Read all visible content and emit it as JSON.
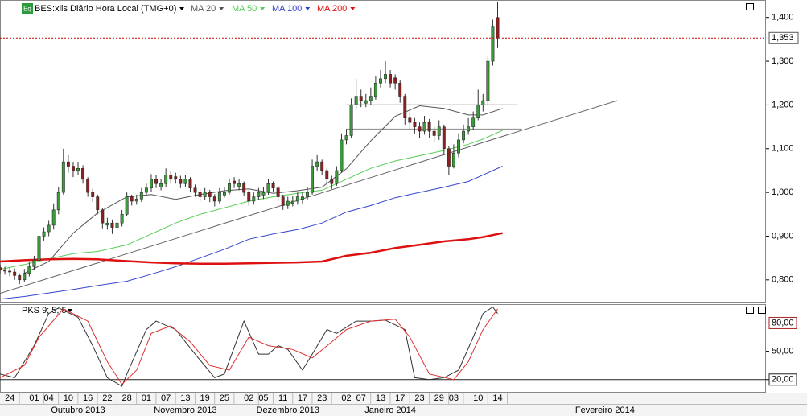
{
  "chart_data": [
    {
      "type": "candlestick",
      "symbol_icon": "Eq",
      "title": "BES:xlis Diário Hora Local (TMG+0)",
      "xlim": [
        -2,
        155
      ],
      "ylim": [
        0.75,
        1.44
      ],
      "yticks": [
        {
          "value": 1.4,
          "label": "1,400"
        },
        {
          "value": 1.3,
          "label": "1,300"
        },
        {
          "value": 1.2,
          "label": "1,200"
        },
        {
          "value": 1.1,
          "label": "1,100"
        },
        {
          "value": 1.0,
          "label": "1,000"
        },
        {
          "value": 0.9,
          "label": "0,900"
        },
        {
          "value": 0.8,
          "label": "0,800"
        }
      ],
      "xticks": [
        {
          "value": 0,
          "label": "24"
        },
        {
          "value": 5,
          "label": "01"
        },
        {
          "value": 8,
          "label": "04"
        },
        {
          "value": 12,
          "label": "10"
        },
        {
          "value": 16,
          "label": "16"
        },
        {
          "value": 20,
          "label": "22"
        },
        {
          "value": 24,
          "label": "28"
        },
        {
          "value": 28,
          "label": "01"
        },
        {
          "value": 32,
          "label": "07"
        },
        {
          "value": 36,
          "label": "13"
        },
        {
          "value": 40,
          "label": "19"
        },
        {
          "value": 44,
          "label": "25"
        },
        {
          "value": 49,
          "label": "02"
        },
        {
          "value": 52,
          "label": "05"
        },
        {
          "value": 56,
          "label": "11"
        },
        {
          "value": 60,
          "label": "17"
        },
        {
          "value": 64,
          "label": "23"
        },
        {
          "value": 69,
          "label": "02"
        },
        {
          "value": 72,
          "label": "07"
        },
        {
          "value": 76,
          "label": "13"
        },
        {
          "value": 80,
          "label": "17"
        },
        {
          "value": 84,
          "label": "23"
        },
        {
          "value": 88,
          "label": "29"
        },
        {
          "value": 91,
          "label": "03"
        },
        {
          "value": 96,
          "label": "10"
        },
        {
          "value": 100,
          "label": "14"
        }
      ],
      "month_ticks": [
        {
          "value": 14,
          "label": "Outubro 2013"
        },
        {
          "value": 36,
          "label": "Novembro 2013"
        },
        {
          "value": 57,
          "label": "Dezembro 2013"
        },
        {
          "value": 78,
          "label": "Janeiro 2014"
        },
        {
          "value": 122,
          "label": "Fevereiro 2014"
        }
      ],
      "up_color": "#3c9a3c",
      "down_color": "#8b2020",
      "candles": {
        "x": [
          -2,
          -1,
          0,
          1,
          2,
          3,
          4,
          5,
          6,
          7,
          8,
          9,
          10,
          11,
          12,
          13,
          14,
          15,
          16,
          17,
          18,
          19,
          20,
          21,
          22,
          23,
          24,
          25,
          26,
          27,
          28,
          29,
          30,
          31,
          32,
          33,
          34,
          35,
          36,
          37,
          38,
          39,
          40,
          41,
          42,
          43,
          44,
          45,
          46,
          47,
          48,
          49,
          50,
          51,
          52,
          53,
          54,
          55,
          56,
          57,
          58,
          59,
          60,
          61,
          62,
          63,
          64,
          65,
          66,
          67,
          68,
          69,
          70,
          71,
          72,
          73,
          74,
          75,
          76,
          77,
          78,
          79,
          80,
          81,
          82,
          83,
          84,
          85,
          86,
          87,
          88,
          89,
          90,
          91,
          92,
          93,
          94,
          95,
          96,
          97,
          98,
          99,
          100
        ],
        "open": [
          0.828,
          0.823,
          0.82,
          0.818,
          0.81,
          0.8,
          0.815,
          0.83,
          0.845,
          0.9,
          0.91,
          0.925,
          0.96,
          1.0,
          1.07,
          1.06,
          1.05,
          1.055,
          1.03,
          1.0,
          0.99,
          0.96,
          0.925,
          0.93,
          0.92,
          0.93,
          0.95,
          0.99,
          0.98,
          0.985,
          1.0,
          1.01,
          1.03,
          1.012,
          1.02,
          1.04,
          1.036,
          1.03,
          1.02,
          1.03,
          1.01,
          1.0,
          0.99,
          1.0,
          0.99,
          0.98,
          0.994,
          1.0,
          1.026,
          1.014,
          1.02,
          1.0,
          0.98,
          0.99,
          0.994,
          1.0,
          1.02,
          1.01,
          0.99,
          0.97,
          0.975,
          0.98,
          0.984,
          0.99,
          1.0,
          1.06,
          1.07,
          1.05,
          1.03,
          1.02,
          1.05,
          1.12,
          1.13,
          1.2,
          1.22,
          1.204,
          1.21,
          1.22,
          1.25,
          1.26,
          1.27,
          1.262,
          1.25,
          1.22,
          1.17,
          1.16,
          1.15,
          1.14,
          1.16,
          1.14,
          1.13,
          1.15,
          1.1,
          1.06,
          1.09,
          1.12,
          1.14,
          1.15,
          1.17,
          1.2,
          1.21,
          1.3,
          1.4
        ],
        "high": [
          0.835,
          0.83,
          0.828,
          0.826,
          0.815,
          0.825,
          0.84,
          0.855,
          0.91,
          0.92,
          0.935,
          0.975,
          1.012,
          1.1,
          1.085,
          1.07,
          1.07,
          1.062,
          1.035,
          1.008,
          0.995,
          0.965,
          0.942,
          0.938,
          0.94,
          0.96,
          1.0,
          0.995,
          0.995,
          1.01,
          1.02,
          1.042,
          1.04,
          1.03,
          1.055,
          1.05,
          1.045,
          1.038,
          1.04,
          1.035,
          1.018,
          1.008,
          1.01,
          1.006,
          0.996,
          1.01,
          1.012,
          1.032,
          1.035,
          1.03,
          1.025,
          1.005,
          1.0,
          1.01,
          1.012,
          1.03,
          1.025,
          1.015,
          0.995,
          0.99,
          0.992,
          1.0,
          1.0,
          1.012,
          1.075,
          1.085,
          1.075,
          1.055,
          1.038,
          1.06,
          1.135,
          1.145,
          1.215,
          1.26,
          1.235,
          1.225,
          1.24,
          1.265,
          1.28,
          1.3,
          1.28,
          1.27,
          1.258,
          1.225,
          1.185,
          1.17,
          1.16,
          1.175,
          1.168,
          1.15,
          1.165,
          1.155,
          1.105,
          1.11,
          1.135,
          1.155,
          1.17,
          1.185,
          1.235,
          1.225,
          1.31,
          1.395,
          1.435
        ],
        "low": [
          0.815,
          0.812,
          0.808,
          0.8,
          0.79,
          0.795,
          0.808,
          0.822,
          0.84,
          0.89,
          0.9,
          0.915,
          0.95,
          0.995,
          1.045,
          1.035,
          1.04,
          1.02,
          0.99,
          0.978,
          0.95,
          0.918,
          0.915,
          0.905,
          0.912,
          0.922,
          0.945,
          0.97,
          0.972,
          0.978,
          0.992,
          1.002,
          1.01,
          1.005,
          1.012,
          1.02,
          1.02,
          1.01,
          1.012,
          1.0,
          0.99,
          0.98,
          0.982,
          0.978,
          0.968,
          0.975,
          0.988,
          0.995,
          1.01,
          1.005,
          0.992,
          0.97,
          0.972,
          0.982,
          0.985,
          0.995,
          1.0,
          0.98,
          0.96,
          0.962,
          0.968,
          0.972,
          0.975,
          0.982,
          0.995,
          1.05,
          1.04,
          1.02,
          1.008,
          1.015,
          1.045,
          1.11,
          1.125,
          1.19,
          1.195,
          1.195,
          1.2,
          1.212,
          1.24,
          1.25,
          1.24,
          1.235,
          1.205,
          1.155,
          1.145,
          1.135,
          1.125,
          1.132,
          1.125,
          1.115,
          1.12,
          1.085,
          1.04,
          1.055,
          1.08,
          1.112,
          1.132,
          1.142,
          1.165,
          1.185,
          1.2,
          1.29,
          1.33
        ],
        "close": [
          0.823,
          0.82,
          0.818,
          0.81,
          0.8,
          0.815,
          0.83,
          0.845,
          0.9,
          0.91,
          0.925,
          0.96,
          1.0,
          1.07,
          1.06,
          1.05,
          1.055,
          1.03,
          1.0,
          0.99,
          0.96,
          0.93,
          0.93,
          0.92,
          0.93,
          0.95,
          0.99,
          0.98,
          0.985,
          1.0,
          1.01,
          1.03,
          1.02,
          1.02,
          1.04,
          1.03,
          1.03,
          1.02,
          1.03,
          1.01,
          1.0,
          0.99,
          1.0,
          0.99,
          0.98,
          1.0,
          1.0,
          1.02,
          1.02,
          1.02,
          1.0,
          0.98,
          0.99,
          1.0,
          1.0,
          1.02,
          1.01,
          0.99,
          0.97,
          0.98,
          0.98,
          0.99,
          0.99,
          1.0,
          1.06,
          1.07,
          1.05,
          1.03,
          1.02,
          1.05,
          1.12,
          1.13,
          1.2,
          1.22,
          1.21,
          1.21,
          1.22,
          1.25,
          1.26,
          1.27,
          1.25,
          1.25,
          1.22,
          1.17,
          1.16,
          1.15,
          1.14,
          1.16,
          1.14,
          1.13,
          1.15,
          1.1,
          1.06,
          1.09,
          1.12,
          1.14,
          1.15,
          1.17,
          1.2,
          1.21,
          1.3,
          1.38,
          1.353
        ]
      },
      "last_price": {
        "value": 1.353,
        "label": "1,353"
      },
      "last_price_color": "#cc0000",
      "series": [
        {
          "name": "MA 20",
          "color": "#555555",
          "width": 1,
          "x": [
            -2,
            3,
            8,
            13,
            18,
            24,
            29,
            34,
            39,
            44,
            49,
            54,
            59,
            64,
            69,
            74,
            79,
            84,
            89,
            94,
            97,
            101
          ],
          "values": [
            null,
            0.815,
            0.842,
            0.907,
            0.953,
            0.99,
            0.995,
            0.984,
            0.995,
            1.004,
            1.008,
            0.998,
            1.004,
            1.012,
            1.054,
            1.118,
            1.174,
            1.198,
            1.192,
            1.177,
            1.177,
            1.192
          ]
        },
        {
          "name": "MA 50",
          "color": "#55cc55",
          "width": 1,
          "x": [
            -2,
            3,
            8,
            13,
            18,
            24,
            29,
            34,
            39,
            44,
            49,
            54,
            59,
            64,
            69,
            74,
            79,
            84,
            89,
            94,
            97,
            101
          ],
          "values": [
            0.824,
            0.835,
            0.848,
            0.86,
            0.865,
            0.88,
            0.905,
            0.93,
            0.95,
            0.965,
            0.98,
            0.99,
            0.998,
            1.005,
            1.03,
            1.055,
            1.072,
            1.084,
            1.096,
            1.11,
            1.122,
            1.142
          ]
        },
        {
          "name": "MA 100",
          "color": "#3344cc",
          "width": 1,
          "x": [
            -2,
            3,
            8,
            13,
            18,
            24,
            29,
            34,
            39,
            44,
            49,
            54,
            59,
            64,
            69,
            74,
            79,
            84,
            89,
            94,
            97,
            101
          ],
          "values": [
            0.756,
            0.762,
            0.77,
            0.778,
            0.787,
            0.797,
            0.813,
            0.83,
            0.85,
            0.87,
            0.893,
            0.905,
            0.915,
            0.93,
            0.955,
            0.97,
            0.988,
            1.0,
            1.012,
            1.025,
            1.04,
            1.06
          ]
        },
        {
          "name": "MA 200",
          "color": "#dd1111",
          "width": 2.5,
          "x": [
            -2,
            3,
            8,
            13,
            18,
            24,
            29,
            34,
            39,
            44,
            49,
            54,
            59,
            64,
            69,
            74,
            79,
            84,
            89,
            94,
            97,
            101
          ],
          "values": [
            0.842,
            0.845,
            0.847,
            0.848,
            0.847,
            0.843,
            0.84,
            0.838,
            0.837,
            0.837,
            0.838,
            0.839,
            0.84,
            0.842,
            0.855,
            0.862,
            0.873,
            0.88,
            0.888,
            0.893,
            0.898,
            0.907
          ]
        }
      ],
      "trendlines": [
        {
          "x": [
            -2,
            124.5
          ],
          "y": [
            0.769,
            1.21
          ],
          "color": "#666666"
        },
        {
          "x": [
            69,
            104
          ],
          "y": [
            1.2,
            1.2
          ],
          "color": "#111111"
        },
        {
          "x": [
            69,
            105
          ],
          "y": [
            1.145,
            1.145
          ],
          "color": "#888888"
        }
      ]
    },
    {
      "type": "line",
      "title": "PKS 9; 5; 5",
      "xlim": [
        -2,
        155
      ],
      "ylim": [
        7,
        100
      ],
      "yticks": [
        {
          "value": 80,
          "label": "80,00"
        },
        {
          "value": 50,
          "label": "50,00"
        },
        {
          "value": 20,
          "label": "20,00"
        }
      ],
      "levels": [
        {
          "value": 80,
          "color": "#aa2222"
        },
        {
          "value": 20,
          "color": "#222222"
        }
      ],
      "series": [
        {
          "color": "#333333",
          "x": [
            -2,
            1,
            5,
            8,
            10,
            14,
            17,
            20,
            23,
            24,
            28,
            30,
            34,
            38,
            42,
            44,
            48,
            51,
            53,
            55,
            57,
            60,
            62,
            65,
            67,
            71,
            74,
            77,
            81,
            83,
            86,
            89,
            92,
            95,
            97,
            99,
            100
          ],
          "values": [
            26,
            22,
            56,
            90,
            96,
            86,
            56,
            22,
            13,
            26,
            73,
            82,
            73,
            47,
            22,
            26,
            82,
            47,
            47,
            56,
            52,
            30,
            47,
            73,
            69,
            82,
            82,
            83,
            73,
            22,
            20,
            22,
            30,
            65,
            90,
            97,
            90
          ]
        },
        {
          "color": "#e03030",
          "x": [
            -2,
            3,
            6,
            11,
            16,
            20,
            23,
            26,
            29,
            33,
            37,
            41,
            45,
            49,
            53,
            58,
            62,
            66,
            69,
            74,
            79,
            82,
            86,
            91,
            94,
            97,
            100
          ],
          "values": [
            22,
            35,
            65,
            95,
            82,
            39,
            15,
            30,
            69,
            77,
            60,
            35,
            30,
            65,
            56,
            52,
            43,
            60,
            73,
            82,
            84,
            65,
            26,
            20,
            39,
            73,
            95
          ]
        }
      ]
    }
  ]
}
